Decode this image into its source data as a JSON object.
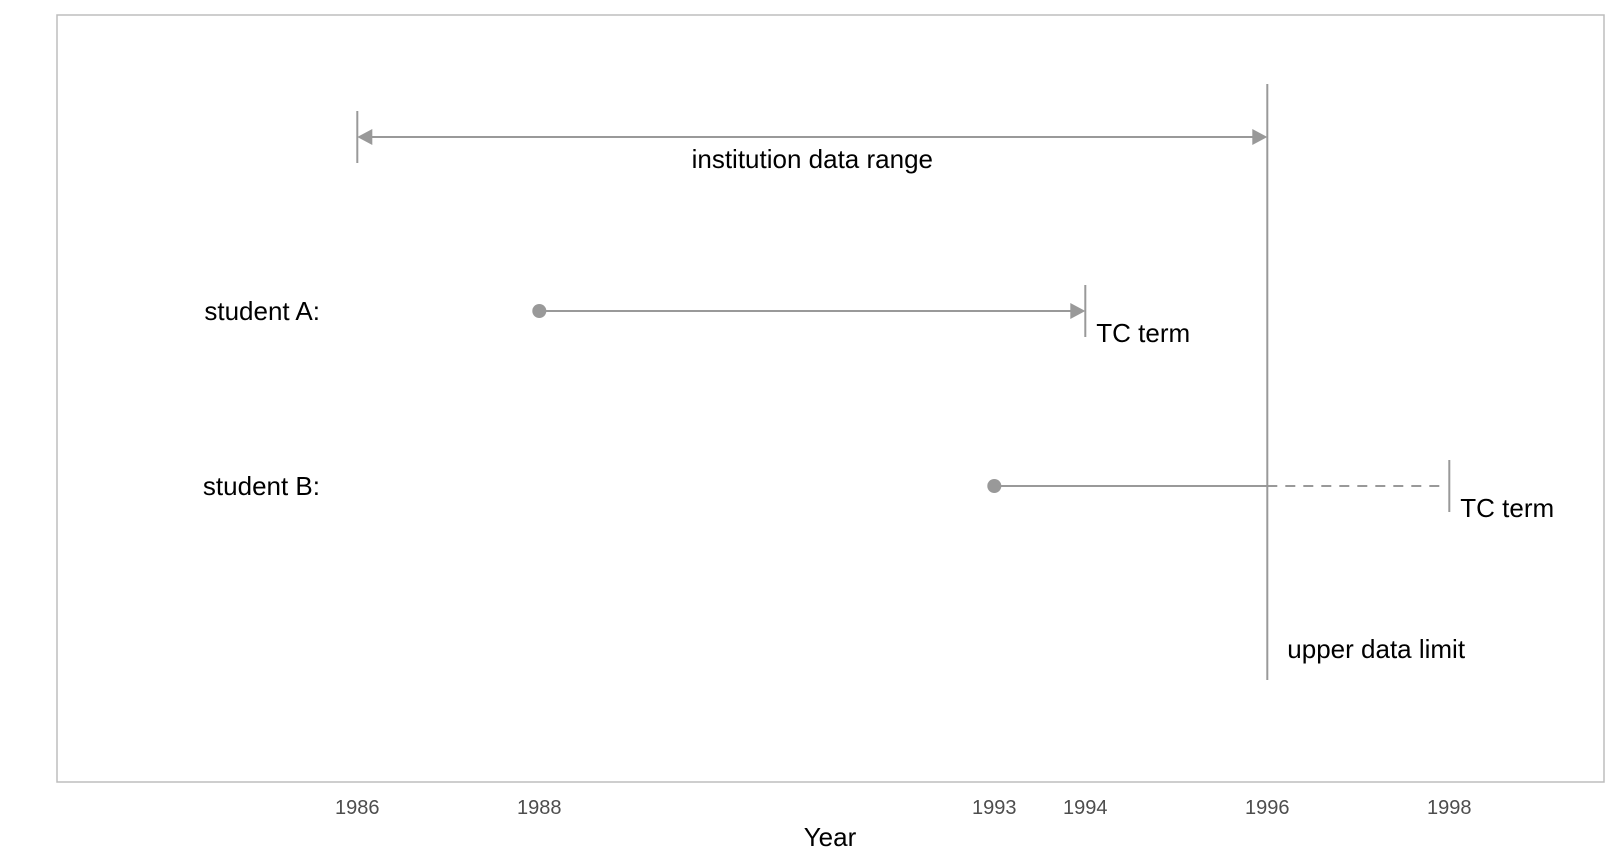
{
  "chart_data": {
    "type": "timeline",
    "xlabel": "Year",
    "x_ticks": [
      1986,
      1988,
      1993,
      1994,
      1996,
      1998
    ],
    "xlim": [
      1982.7,
      1999.7
    ],
    "grid": false,
    "color": "#999999",
    "series": [
      {
        "name": "institution data range",
        "start": 1986,
        "end": 1996,
        "style": "double-arrow"
      },
      {
        "name": "student A:",
        "start": 1988,
        "end": 1994,
        "end_label": "TC term",
        "observed_until": 1994
      },
      {
        "name": "student B:",
        "start": 1993,
        "end": 1998,
        "end_label": "TC term",
        "observed_until": 1996
      }
    ],
    "reference_line": {
      "x": 1996,
      "label": "upper data limit"
    }
  }
}
